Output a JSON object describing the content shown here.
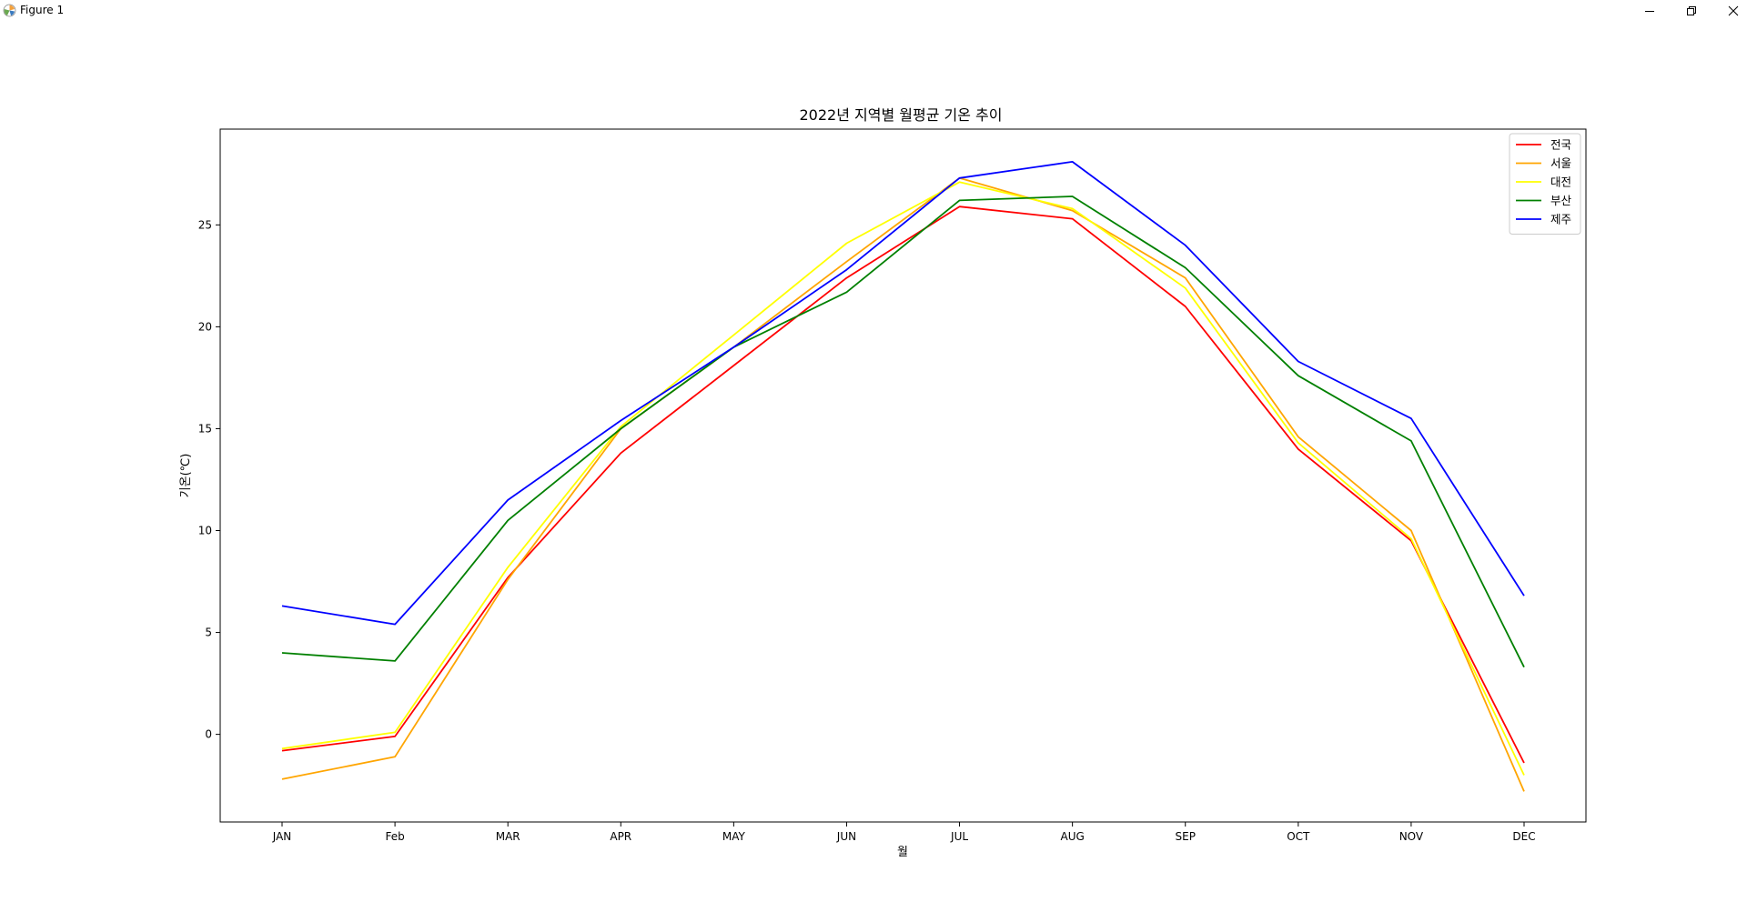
{
  "window": {
    "title": "Figure 1",
    "icon": "matplotlib-icon",
    "controls": [
      "minimize-icon",
      "restore-icon",
      "close-icon"
    ]
  },
  "chart_data": {
    "type": "line",
    "title": "2022년 지역별 월평균 기온 추이",
    "xlabel": "월",
    "ylabel": "기온(℃)",
    "categories": [
      "JAN",
      "Feb",
      "MAR",
      "APR",
      "MAY",
      "JUN",
      "JUL",
      "AUG",
      "SEP",
      "OCT",
      "NOV",
      "DEC"
    ],
    "ylim": [
      -4.3,
      29.7
    ],
    "yticks": [
      0,
      5,
      10,
      15,
      20,
      25
    ],
    "grid": false,
    "legend_position": "top-right",
    "series": [
      {
        "name": "전국",
        "color": "#ff0000",
        "values": [
          -0.8,
          -0.1,
          7.7,
          13.8,
          18.1,
          22.4,
          25.9,
          25.3,
          21.0,
          14.0,
          9.5,
          -1.4
        ]
      },
      {
        "name": "서울",
        "color": "#ffa500",
        "values": [
          -2.2,
          -1.1,
          7.6,
          15.0,
          19.0,
          23.2,
          27.3,
          25.7,
          22.4,
          14.6,
          10.0,
          -2.8
        ]
      },
      {
        "name": "대전",
        "color": "#ffff00",
        "values": [
          -0.7,
          0.1,
          8.2,
          15.1,
          19.6,
          24.1,
          27.1,
          25.8,
          21.9,
          14.3,
          9.6,
          -2.0
        ]
      },
      {
        "name": "부산",
        "color": "#008000",
        "values": [
          4.0,
          3.6,
          10.5,
          15.0,
          19.0,
          21.7,
          26.2,
          26.4,
          22.9,
          17.6,
          14.4,
          3.3
        ]
      },
      {
        "name": "제주",
        "color": "#0000ff",
        "values": [
          6.3,
          5.4,
          11.5,
          15.4,
          19.0,
          22.8,
          27.3,
          28.1,
          24.0,
          18.3,
          15.5,
          6.8
        ]
      }
    ]
  }
}
